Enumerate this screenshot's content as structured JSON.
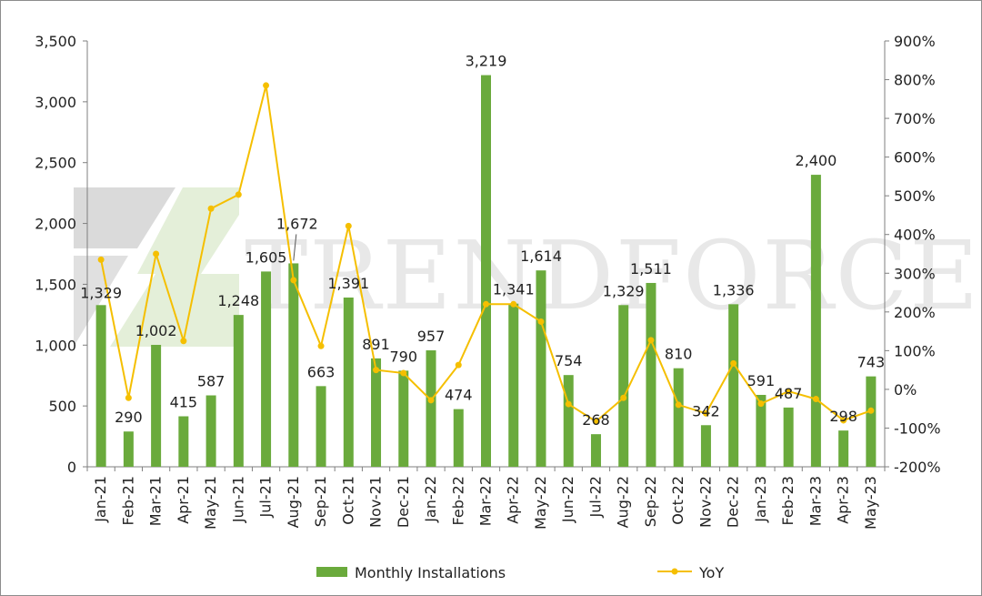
{
  "chart_data": {
    "type": "bar",
    "categories": [
      "Jan-21",
      "Feb-21",
      "Mar-21",
      "Apr-21",
      "May-21",
      "Jun-21",
      "Jul-21",
      "Aug-21",
      "Sep-21",
      "Oct-21",
      "Nov-21",
      "Dec-21",
      "Jan-22",
      "Feb-22",
      "Mar-22",
      "Apr-22",
      "May-22",
      "Jun-22",
      "Jul-22",
      "Aug-22",
      "Sep-22",
      "Oct-22",
      "Nov-22",
      "Dec-22",
      "Jan-23",
      "Feb-23",
      "Mar-23",
      "Apr-23",
      "May-23"
    ],
    "series": [
      {
        "name": "Monthly Installations",
        "type": "bar",
        "axis": "left",
        "color": "#6aaa3c",
        "values": [
          1329,
          290,
          1002,
          415,
          587,
          1248,
          1605,
          1672,
          663,
          1391,
          891,
          790,
          957,
          474,
          3219,
          1341,
          1614,
          754,
          268,
          1329,
          1511,
          810,
          342,
          1336,
          591,
          487,
          2400,
          298,
          743
        ],
        "labels": [
          "1,329",
          "290",
          "1,002",
          "415",
          "587",
          "1,248",
          "1,605",
          "1,672",
          "663",
          "1,391",
          "891",
          "790",
          "957",
          "474",
          "3,219",
          "1,341",
          "1,614",
          "754",
          "268",
          "1,329",
          "1,511",
          "810",
          "342",
          "1,336",
          "591",
          "487",
          "2,400",
          "298",
          "743"
        ]
      },
      {
        "name": "YoY",
        "type": "line",
        "axis": "right",
        "color": "#f5bf00",
        "values": [
          335,
          -22,
          350,
          125,
          467,
          503,
          785,
          282,
          112,
          422,
          50,
          42,
          -28,
          63,
          220,
          220,
          175,
          -38,
          -83,
          -22,
          127,
          -40,
          -62,
          67,
          -37,
          -5,
          -25,
          -80,
          -55
        ]
      }
    ],
    "y_left": {
      "ylim": [
        0,
        3500
      ],
      "ticks": [
        "0",
        "500",
        "1,000",
        "1,500",
        "2,000",
        "2,500",
        "3,000",
        "3,500"
      ],
      "tick_values": [
        0,
        500,
        1000,
        1500,
        2000,
        2500,
        3000,
        3500
      ]
    },
    "y_right": {
      "ylim": [
        -200,
        900
      ],
      "ticks": [
        "-200%",
        "-100%",
        "0%",
        "100%",
        "200%",
        "300%",
        "400%",
        "500%",
        "600%",
        "700%",
        "800%",
        "900%"
      ],
      "tick_values": [
        -200,
        -100,
        0,
        100,
        200,
        300,
        400,
        500,
        600,
        700,
        800,
        900
      ]
    },
    "legend_position": "bottom",
    "grid": false
  },
  "watermark": {
    "text": "TRENDFORCE"
  }
}
